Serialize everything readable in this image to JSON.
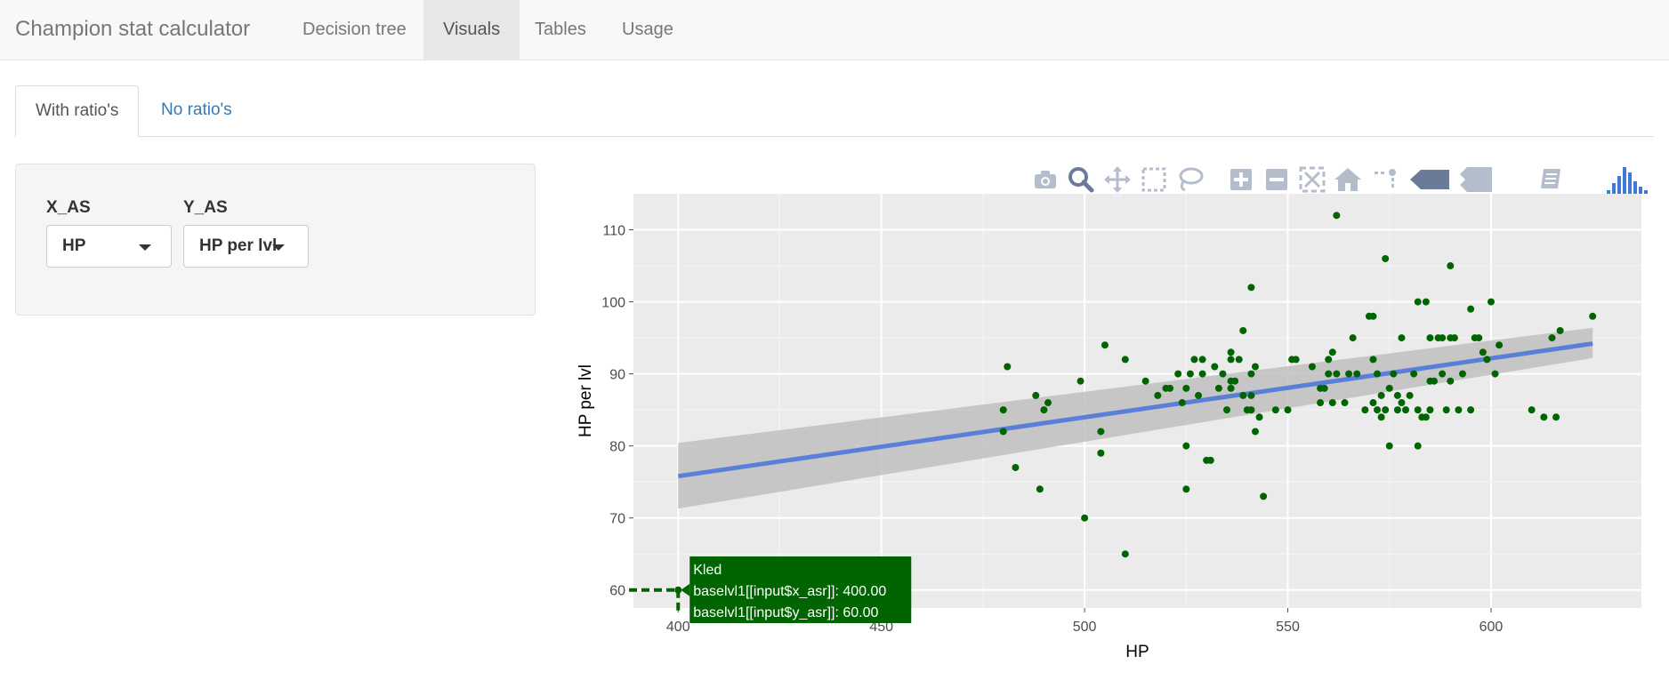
{
  "navbar": {
    "brand": "Champion stat calculator",
    "tabs": [
      {
        "label": "Decision tree",
        "active": false
      },
      {
        "label": "Visuals",
        "active": true
      },
      {
        "label": "Tables",
        "active": false
      },
      {
        "label": "Usage",
        "active": false
      }
    ]
  },
  "subtabs": [
    {
      "label": "With ratio's",
      "active": true
    },
    {
      "label": "No ratio's",
      "active": false
    }
  ],
  "controls": {
    "x_label": "X_AS",
    "x_value": "HP",
    "y_label": "Y_AS",
    "y_value": "HP per lvl"
  },
  "modebar": {
    "icons": [
      "camera-icon",
      "zoom-icon",
      "pan-icon",
      "box-select-icon",
      "lasso-icon",
      "zoom-in-icon",
      "zoom-out-icon",
      "autoscale-icon",
      "reset-axes-icon",
      "spike-lines-icon",
      "hover-closest-icon",
      "hover-compare-icon",
      "edit-chart-icon",
      "plotly-logo-icon"
    ]
  },
  "colors": {
    "points": "#006400",
    "trend_line": "#5b7fd8",
    "confidence_band": "#bfbfbf",
    "panel": "#ebebeb",
    "tooltip": "#006400"
  },
  "tooltip": {
    "lines": [
      "Kled",
      "baselvl1[[input$x_asr]]: 400.00",
      "baselvl1[[input$y_asr]]: 60.00"
    ]
  },
  "chart_data": {
    "type": "scatter",
    "xlabel": "HP",
    "ylabel": "HP per lvl",
    "xlim": [
      389,
      637
    ],
    "ylim": [
      57.5,
      115
    ],
    "x_ticks": [
      400,
      450,
      500,
      550,
      600
    ],
    "y_ticks": [
      60,
      70,
      80,
      90,
      100,
      110
    ],
    "grid": true,
    "trend": {
      "x": [
        400,
        625
      ],
      "y": [
        75.8,
        94.2
      ],
      "band_lower": [
        71.3,
        92.2
      ],
      "band_upper": [
        80.4,
        96.4
      ]
    },
    "points": [
      [
        400,
        60
      ],
      [
        480,
        85
      ],
      [
        480,
        82
      ],
      [
        481,
        91
      ],
      [
        483,
        77
      ],
      [
        488,
        87
      ],
      [
        489,
        74
      ],
      [
        490,
        85
      ],
      [
        491,
        86
      ],
      [
        499,
        89
      ],
      [
        500,
        70
      ],
      [
        504,
        82
      ],
      [
        504,
        79
      ],
      [
        505,
        94
      ],
      [
        510,
        92
      ],
      [
        510,
        65
      ],
      [
        515,
        89
      ],
      [
        518,
        87
      ],
      [
        520,
        88
      ],
      [
        521,
        88
      ],
      [
        523,
        90
      ],
      [
        524,
        86
      ],
      [
        525,
        88
      ],
      [
        525,
        80
      ],
      [
        525,
        74
      ],
      [
        526,
        90
      ],
      [
        527,
        92
      ],
      [
        528,
        87
      ],
      [
        529,
        90
      ],
      [
        529,
        92
      ],
      [
        530,
        78
      ],
      [
        531,
        78
      ],
      [
        532,
        91
      ],
      [
        533,
        88
      ],
      [
        534,
        90
      ],
      [
        535,
        85
      ],
      [
        536,
        89
      ],
      [
        536,
        88
      ],
      [
        536,
        92
      ],
      [
        536,
        93
      ],
      [
        537,
        89
      ],
      [
        538,
        92
      ],
      [
        539,
        96
      ],
      [
        539,
        87
      ],
      [
        540,
        85
      ],
      [
        541,
        85
      ],
      [
        541,
        102
      ],
      [
        541,
        90
      ],
      [
        541,
        87
      ],
      [
        542,
        82
      ],
      [
        542,
        91
      ],
      [
        543,
        84
      ],
      [
        544,
        73
      ],
      [
        547,
        85
      ],
      [
        550,
        85
      ],
      [
        551,
        92
      ],
      [
        552,
        92
      ],
      [
        556,
        91
      ],
      [
        558,
        86
      ],
      [
        558,
        88
      ],
      [
        559,
        88
      ],
      [
        560,
        92
      ],
      [
        560,
        90
      ],
      [
        561,
        93
      ],
      [
        561,
        86
      ],
      [
        562,
        112
      ],
      [
        562,
        90
      ],
      [
        564,
        86
      ],
      [
        565,
        90
      ],
      [
        566,
        95
      ],
      [
        567,
        90
      ],
      [
        569,
        85
      ],
      [
        570,
        98
      ],
      [
        571,
        98
      ],
      [
        571,
        92
      ],
      [
        571,
        86
      ],
      [
        572,
        85
      ],
      [
        572,
        90
      ],
      [
        573,
        84
      ],
      [
        573,
        87
      ],
      [
        574,
        85
      ],
      [
        574,
        106
      ],
      [
        575,
        88
      ],
      [
        575,
        80
      ],
      [
        576,
        90
      ],
      [
        577,
        85
      ],
      [
        577,
        87
      ],
      [
        578,
        95
      ],
      [
        578,
        86
      ],
      [
        579,
        85
      ],
      [
        580,
        87
      ],
      [
        581,
        90
      ],
      [
        582,
        85
      ],
      [
        582,
        80
      ],
      [
        582,
        100
      ],
      [
        583,
        84
      ],
      [
        584,
        84
      ],
      [
        584,
        100
      ],
      [
        585,
        95
      ],
      [
        585,
        89
      ],
      [
        585,
        85
      ],
      [
        586,
        89
      ],
      [
        587,
        95
      ],
      [
        588,
        90
      ],
      [
        588,
        95
      ],
      [
        589,
        85
      ],
      [
        590,
        105
      ],
      [
        590,
        95
      ],
      [
        590,
        89
      ],
      [
        591,
        95
      ],
      [
        592,
        85
      ],
      [
        593,
        90
      ],
      [
        595,
        85
      ],
      [
        595,
        99
      ],
      [
        596,
        95
      ],
      [
        597,
        95
      ],
      [
        598,
        93
      ],
      [
        599,
        92
      ],
      [
        600,
        100
      ],
      [
        601,
        90
      ],
      [
        602,
        94
      ],
      [
        610,
        85
      ],
      [
        613,
        84
      ],
      [
        615,
        95
      ],
      [
        616,
        84
      ],
      [
        617,
        96
      ],
      [
        625,
        98
      ]
    ]
  }
}
